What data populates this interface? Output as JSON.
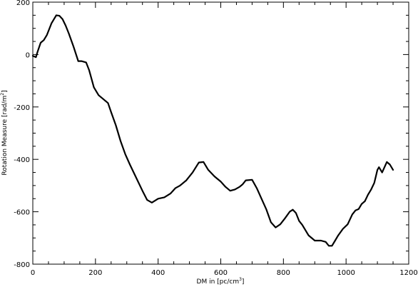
{
  "chart_data": {
    "type": "line",
    "title": "",
    "xlabel": "DM in [pc/cm",
    "xlabel_sup": "3",
    "xlabel_end": "]",
    "ylabel": "Rotation Measure [rad/m",
    "ylabel_sup": "2",
    "ylabel_end": "]",
    "xlim": [
      0,
      1200
    ],
    "ylim": [
      -800,
      200
    ],
    "xticks": [
      "0",
      "200",
      "400",
      "600",
      "800",
      "1000",
      "1200"
    ],
    "yticks": [
      "-800",
      "-600",
      "-400",
      "-200",
      "0",
      "200"
    ],
    "grid": false,
    "legend": "none",
    "line_color": "#000000",
    "series": [
      {
        "x": [
          0,
          10,
          15,
          25,
          35,
          45,
          60,
          75,
          85,
          95,
          105,
          115,
          130,
          145,
          155,
          170,
          180,
          195,
          210,
          225,
          240,
          250,
          265,
          280,
          295,
          310,
          330,
          350,
          365,
          380,
          400,
          420,
          440,
          455,
          470,
          490,
          510,
          530,
          545,
          560,
          580,
          600,
          615,
          630,
          645,
          660,
          670,
          680,
          700,
          715,
          730,
          745,
          760,
          775,
          790,
          805,
          820,
          830,
          840,
          850,
          860,
          880,
          900,
          920,
          935,
          945,
          955,
          965,
          975,
          990,
          1005,
          1020,
          1030,
          1040,
          1050,
          1060,
          1070,
          1080,
          1090,
          1095,
          1100,
          1105,
          1115,
          1130,
          1140,
          1150
        ],
        "y": [
          -5,
          -10,
          10,
          45,
          55,
          75,
          120,
          150,
          148,
          135,
          110,
          80,
          30,
          -25,
          -25,
          -30,
          -60,
          -125,
          -155,
          -170,
          -185,
          -220,
          -270,
          -330,
          -380,
          -420,
          -470,
          -520,
          -555,
          -565,
          -550,
          -545,
          -530,
          -510,
          -500,
          -480,
          -450,
          -412,
          -410,
          -440,
          -465,
          -485,
          -505,
          -520,
          -515,
          -505,
          -495,
          -480,
          -478,
          -510,
          -550,
          -590,
          -640,
          -660,
          -648,
          -625,
          -600,
          -592,
          -605,
          -635,
          -650,
          -690,
          -710,
          -710,
          -715,
          -730,
          -730,
          -710,
          -690,
          -665,
          -648,
          -610,
          -595,
          -590,
          -570,
          -560,
          -535,
          -515,
          -490,
          -465,
          -440,
          -430,
          -450,
          -410,
          -420,
          -440
        ]
      }
    ]
  }
}
